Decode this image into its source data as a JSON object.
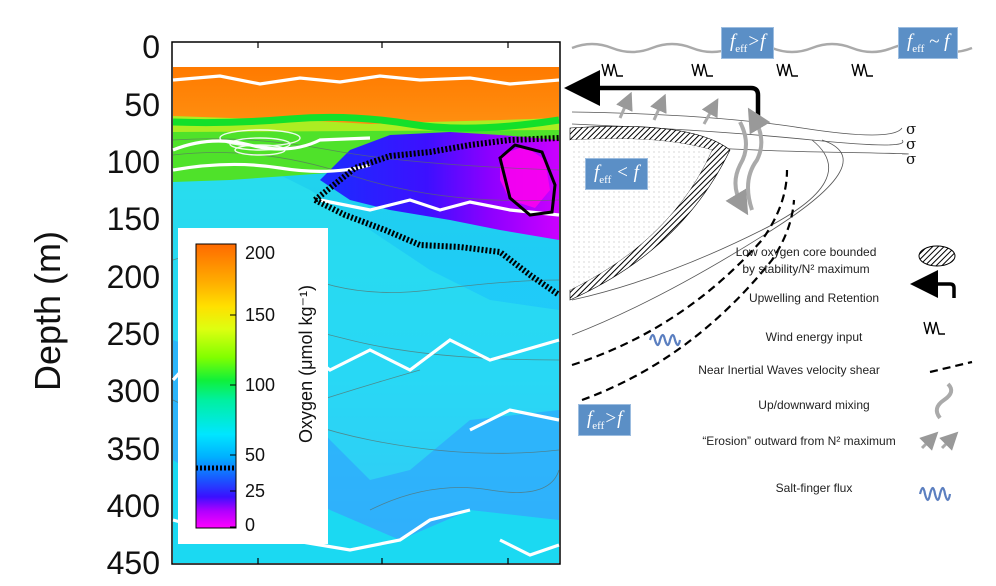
{
  "axis": {
    "ylabel": "Depth (m)",
    "yticks": [
      "0",
      "50",
      "100",
      "150",
      "200",
      "250",
      "300",
      "350",
      "400",
      "450"
    ]
  },
  "colorbar": {
    "title": "Oxygen (μmol kg⁻¹)",
    "ticks": [
      "200",
      "150",
      "100",
      "50",
      "25",
      "0"
    ],
    "colors": [
      "#ff00ff",
      "#9900ff",
      "#2200ff",
      "#00b4ff",
      "#00e8ff",
      "#00ff80",
      "#66ff00",
      "#ddff00",
      "#ffd700",
      "#ff8c00",
      "#ff6a00"
    ]
  },
  "badges": {
    "surface_left": {
      "base": "f",
      "sub": "eff",
      "rel": ">f"
    },
    "surface_right": {
      "base": "f",
      "sub": "eff",
      "rel": " ~ f"
    },
    "core": {
      "base": "f",
      "sub": "eff",
      "rel": " < f"
    },
    "deep": {
      "base": "f",
      "sub": "eff",
      "rel": ">f"
    }
  },
  "sigma_labels": [
    "σ",
    "σ",
    "σ"
  ],
  "legend": [
    {
      "text": "Low oxygen core bounded\nby stability/N² maximum",
      "icon": "hatched-core-icon"
    },
    {
      "text": "Upwelling and  Retention",
      "icon": "upwelling-arrow-icon"
    },
    {
      "text": "Wind energy input",
      "icon": "wind-icon"
    },
    {
      "text": "Near Inertial Waves velocity shear",
      "icon": "dashed-line-icon"
    },
    {
      "text": "Up/downward mixing",
      "icon": "mixing-arrow-icon"
    },
    {
      "text": "“Erosion” outward from N² maximum",
      "icon": "erosion-arrows-icon"
    },
    {
      "text": "Salt-finger flux",
      "icon": "salt-finger-icon"
    }
  ]
}
